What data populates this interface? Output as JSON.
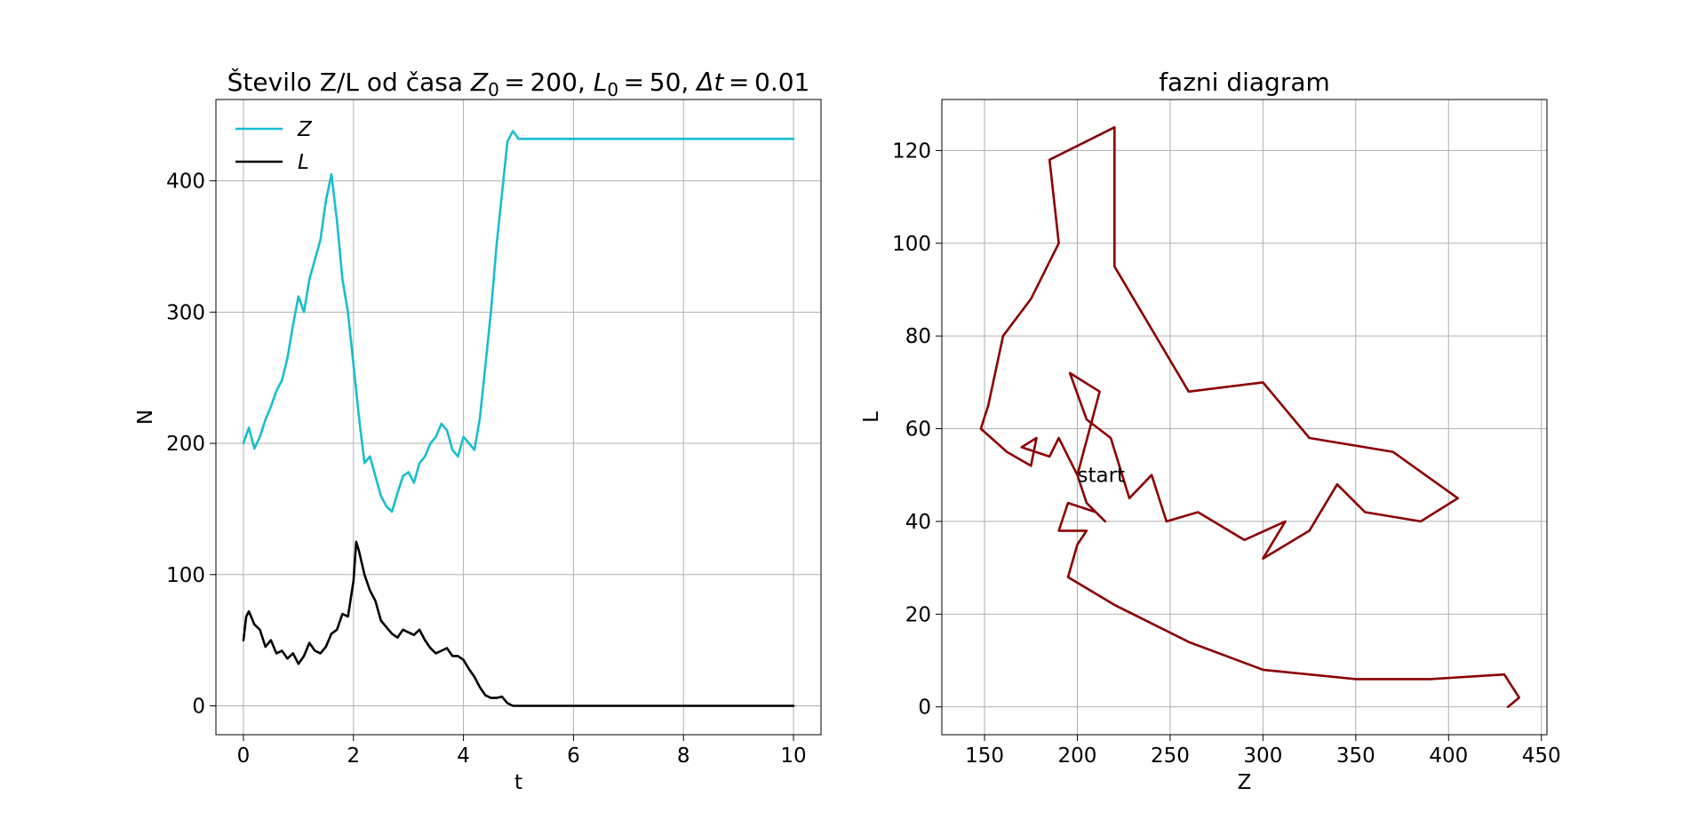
{
  "chart_data": [
    {
      "type": "line",
      "title_prefix": "Število Z/L od časa ",
      "title_params": [
        {
          "sym": "Z",
          "sub": "0",
          "value": "200"
        },
        {
          "sym": "L",
          "sub": "0",
          "value": "50"
        },
        {
          "sym": "Δt",
          "sub": "",
          "value": "0.01"
        }
      ],
      "xlabel": "t",
      "ylabel": "N",
      "xlim": [
        -0.5,
        10.5
      ],
      "ylim": [
        -22,
        462
      ],
      "xticks": [
        0,
        2,
        4,
        6,
        8,
        10
      ],
      "yticks": [
        0,
        100,
        200,
        300,
        400
      ],
      "grid": true,
      "legend_position": "top-left",
      "series": [
        {
          "name": "Z",
          "color": "#17becf",
          "x": [
            0.0,
            0.1,
            0.2,
            0.3,
            0.4,
            0.5,
            0.6,
            0.7,
            0.8,
            0.9,
            1.0,
            1.1,
            1.2,
            1.3,
            1.4,
            1.5,
            1.6,
            1.7,
            1.8,
            1.9,
            2.0,
            2.1,
            2.2,
            2.3,
            2.4,
            2.5,
            2.6,
            2.7,
            2.8,
            2.9,
            3.0,
            3.1,
            3.2,
            3.3,
            3.4,
            3.5,
            3.6,
            3.7,
            3.8,
            3.9,
            4.0,
            4.1,
            4.2,
            4.3,
            4.4,
            4.5,
            4.6,
            4.7,
            4.8,
            4.9,
            5.0,
            10.0
          ],
          "y": [
            200,
            212,
            196,
            205,
            218,
            228,
            240,
            248,
            265,
            290,
            312,
            300,
            325,
            340,
            355,
            385,
            405,
            370,
            325,
            300,
            260,
            220,
            185,
            190,
            175,
            160,
            152,
            148,
            162,
            175,
            178,
            170,
            185,
            190,
            200,
            205,
            215,
            210,
            195,
            190,
            205,
            200,
            195,
            220,
            260,
            300,
            350,
            390,
            430,
            438,
            432,
            432
          ]
        },
        {
          "name": "L",
          "color": "#000000",
          "x": [
            0.0,
            0.05,
            0.1,
            0.2,
            0.3,
            0.4,
            0.5,
            0.6,
            0.7,
            0.8,
            0.9,
            1.0,
            1.1,
            1.2,
            1.3,
            1.4,
            1.5,
            1.6,
            1.7,
            1.8,
            1.9,
            2.0,
            2.05,
            2.1,
            2.2,
            2.3,
            2.4,
            2.5,
            2.6,
            2.7,
            2.8,
            2.9,
            3.0,
            3.1,
            3.2,
            3.3,
            3.4,
            3.5,
            3.6,
            3.7,
            3.8,
            3.9,
            4.0,
            4.1,
            4.2,
            4.3,
            4.4,
            4.5,
            4.6,
            4.7,
            4.8,
            4.9,
            5.0,
            10.0
          ],
          "y": [
            50,
            68,
            72,
            62,
            58,
            45,
            50,
            40,
            42,
            36,
            40,
            32,
            38,
            48,
            42,
            40,
            45,
            55,
            58,
            70,
            68,
            95,
            125,
            118,
            100,
            88,
            80,
            65,
            60,
            55,
            52,
            58,
            56,
            54,
            58,
            50,
            44,
            40,
            42,
            44,
            38,
            38,
            35,
            28,
            22,
            14,
            8,
            6,
            6,
            7,
            2,
            0,
            0,
            0
          ]
        }
      ]
    },
    {
      "type": "line",
      "title": "fazni diagram",
      "xlabel": "Z",
      "ylabel": "L",
      "xlim": [
        127,
        453
      ],
      "ylim": [
        -6,
        131
      ],
      "xticks": [
        150,
        200,
        250,
        300,
        350,
        400,
        450
      ],
      "yticks": [
        0,
        20,
        40,
        60,
        80,
        100,
        120
      ],
      "grid": true,
      "annotation": {
        "text": "start",
        "x": 200,
        "y": 50
      },
      "series": [
        {
          "color": "#8b0000",
          "x": [
            200,
            212,
            196,
            205,
            218,
            228,
            240,
            248,
            265,
            290,
            312,
            300,
            325,
            340,
            355,
            385,
            405,
            370,
            325,
            300,
            260,
            220,
            220,
            185,
            190,
            175,
            160,
            152,
            148,
            162,
            175,
            178,
            170,
            185,
            190,
            200,
            205,
            215,
            210,
            195,
            190,
            205,
            200,
            195,
            220,
            260,
            300,
            350,
            390,
            430,
            438,
            432,
            432
          ],
          "y": [
            50,
            68,
            72,
            62,
            58,
            45,
            50,
            40,
            42,
            36,
            40,
            32,
            38,
            48,
            42,
            40,
            45,
            55,
            58,
            70,
            68,
            95,
            125,
            118,
            100,
            88,
            80,
            65,
            60,
            55,
            52,
            58,
            56,
            54,
            58,
            50,
            44,
            40,
            42,
            44,
            38,
            38,
            35,
            28,
            22,
            14,
            8,
            6,
            6,
            7,
            2,
            0,
            0
          ]
        }
      ]
    }
  ]
}
